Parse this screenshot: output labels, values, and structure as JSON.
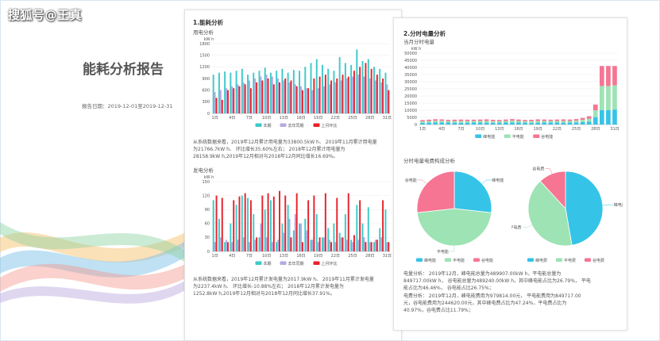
{
  "watermark": "搜狐号@王真",
  "cover": {
    "title": "能耗分析报告",
    "date": "报告日期：2019-12-01至2019-12-31"
  },
  "page1": {
    "section_title": "1.能耗分析",
    "power_title": "用电分析",
    "power_text": [
      "从系统数据来看，2019年12月累计用电量为33800.5kW h、 2019年11月累计用电量",
      "为21766.7kW h、 环比增长35.60%左右；  2018年12月累计用电量为",
      "28158.9kW h,2019年12月相对与2018年12月同比增长16.69%。"
    ],
    "gen_title": "发电分析",
    "gen_text": [
      "从系统数据来看，2019年12月累计发电量为2017.9kW h、 2019年11月累计发电量",
      "为2237.4kW h、 环比增长-10.88%左右；  2018年12月累计发电量为",
      "1252.8kW h,2019年12月相对与2018年12月同比增长37.91%。"
    ]
  },
  "page2": {
    "section_title": "2.分时电量分析",
    "monthly_title": "当月分时电量",
    "pie_title": "分时电量电费构成分析",
    "analysis_text": [
      "电量分析：  2019年12月，峰电能总量为489907.00kW h，平电能总量为",
      "849717.00kW h，  谷电能总量为489240.00kW h，其中峰电能占比为26.79%，   平电",
      "能占比为46.46%，  谷电能占比26.75%；",
      "电费分析：  2019年12月，峰电能费用为979814.00元，  平电能费用为849717.00",
      "元，谷电能费用为244620.00元，其中峰电费占比为47.24%，平电费占比为",
      "40.97%，谷电费占比11.79%；"
    ]
  },
  "colors": {
    "teal": "#3ec9c9",
    "purple": "#b8a8e0",
    "red": "#e8202a",
    "peak": "#36c3e8",
    "flat": "#9de3b4",
    "valley": "#f57592"
  },
  "chart_data": [
    {
      "type": "bar",
      "id": "power",
      "ylabel": "kW h",
      "ylim": [
        0,
        1800
      ],
      "yticks": [
        0,
        300,
        600,
        900,
        1200,
        1500,
        1800
      ],
      "xticks": [
        "1日",
        "4日",
        "7日",
        "10日",
        "13日",
        "16日",
        "19日",
        "22日",
        "25日",
        "28日",
        "31日"
      ],
      "legend_position": "bottom",
      "series": [
        {
          "name": "本期",
          "values": [
            1000,
            1050,
            1080,
            1050,
            1100,
            1150,
            1000,
            1050,
            1100,
            1180,
            1050,
            1100,
            1150,
            1050,
            1120,
            1100,
            1200,
            1300,
            1400,
            1250,
            1150,
            1100,
            1450,
            1300,
            1250,
            1650,
            1350,
            1400,
            1200,
            1150,
            1050
          ]
        },
        {
          "name": "去年同期",
          "values": [
            550,
            600,
            650,
            700,
            750,
            800,
            850,
            900,
            950,
            1000,
            950,
            900,
            850,
            800,
            750,
            700,
            650,
            600,
            650,
            700,
            750,
            800,
            850,
            900,
            950,
            1000,
            950,
            900,
            850,
            800,
            750
          ]
        },
        {
          "name": "上月环比",
          "values": [
            400,
            350,
            600,
            650,
            700,
            750,
            650,
            800,
            850,
            900,
            750,
            800,
            900,
            850,
            700,
            600,
            650,
            900,
            950,
            1000,
            850,
            900,
            1000,
            950,
            1100,
            1200,
            1300,
            1150,
            1000,
            900,
            600
          ]
        }
      ]
    },
    {
      "type": "bar",
      "id": "generation",
      "ylabel": "kW h",
      "ylim": [
        0,
        150
      ],
      "yticks": [
        0,
        30,
        60,
        90,
        120,
        150
      ],
      "xticks": [
        "1日",
        "4日",
        "7日",
        "10日",
        "13日",
        "16日",
        "19日",
        "22日",
        "25日",
        "28日",
        "31日"
      ],
      "legend_position": "bottom",
      "series": [
        {
          "name": "本期",
          "values": [
            110,
            70,
            20,
            60,
            100,
            120,
            115,
            80,
            30,
            90,
            110,
            20,
            60,
            100,
            45,
            60,
            70,
            25,
            80,
            30,
            50,
            60,
            40,
            80,
            25,
            100,
            60,
            95,
            20,
            50,
            90
          ]
        },
        {
          "name": "去年同期",
          "values": [
            20,
            30,
            25,
            20,
            25,
            30,
            20,
            25,
            60,
            30,
            20,
            25,
            40,
            70,
            80,
            60,
            45,
            25,
            20,
            30,
            25,
            20,
            30,
            25,
            20,
            25,
            30,
            20,
            25,
            30,
            20
          ]
        },
        {
          "name": "上月环比",
          "values": [
            120,
            115,
            20,
            110,
            118,
            125,
            110,
            30,
            120,
            125,
            118,
            130,
            120,
            30,
            125,
            20,
            110,
            120,
            30,
            125,
            20,
            115,
            30,
            125,
            35,
            110,
            20,
            20,
            25,
            110,
            20
          ]
        }
      ]
    },
    {
      "type": "bar",
      "id": "timeshare",
      "stacked": true,
      "ylabel": "kW h",
      "ylim": [
        0,
        50000
      ],
      "yticks": [
        0,
        5000,
        10000,
        15000,
        20000,
        25000,
        30000,
        35000,
        40000,
        45000,
        50000
      ],
      "xticks": [
        "1日",
        "4日",
        "7日",
        "10日",
        "13日",
        "16日",
        "19日",
        "22日",
        "25日",
        "28日",
        "31日"
      ],
      "legend_position": "bottom",
      "series": [
        {
          "name": "峰电能",
          "values": [
            1200,
            1300,
            1400,
            1500,
            1400,
            1300,
            1200,
            1300,
            1500,
            1400,
            1300,
            1200,
            1300,
            1400,
            1500,
            1400,
            1300,
            1200,
            1300,
            1400,
            1500,
            1400,
            1300,
            1400,
            1500,
            1800,
            2000,
            5000,
            10000,
            10000,
            10500
          ]
        },
        {
          "name": "平电能",
          "values": [
            1000,
            1100,
            1200,
            1100,
            1000,
            1100,
            1200,
            1100,
            1000,
            1100,
            1200,
            1100,
            1000,
            1100,
            1200,
            1100,
            1000,
            1100,
            1200,
            1100,
            1000,
            1100,
            1200,
            1100,
            1200,
            1500,
            2000,
            5000,
            17000,
            17000,
            17000
          ]
        },
        {
          "name": "谷电能",
          "values": [
            900,
            1000,
            1100,
            1000,
            900,
            1000,
            1100,
            1000,
            900,
            1000,
            1100,
            1000,
            900,
            1000,
            1100,
            1000,
            900,
            1000,
            1100,
            1000,
            900,
            1000,
            1100,
            1000,
            1100,
            1300,
            1800,
            4000,
            14000,
            14000,
            13500
          ]
        }
      ]
    },
    {
      "type": "pie",
      "id": "energy-pie",
      "slices": [
        {
          "name": "峰电能",
          "value": 26.79
        },
        {
          "name": "平电能",
          "value": 46.46
        },
        {
          "name": "谷电能",
          "value": 26.75
        }
      ]
    },
    {
      "type": "pie",
      "id": "cost-pie",
      "slices": [
        {
          "name": "峰电费",
          "value": 47.24
        },
        {
          "name": "平电费",
          "value": 40.97
        },
        {
          "name": "谷电费",
          "value": 11.79
        }
      ]
    }
  ]
}
